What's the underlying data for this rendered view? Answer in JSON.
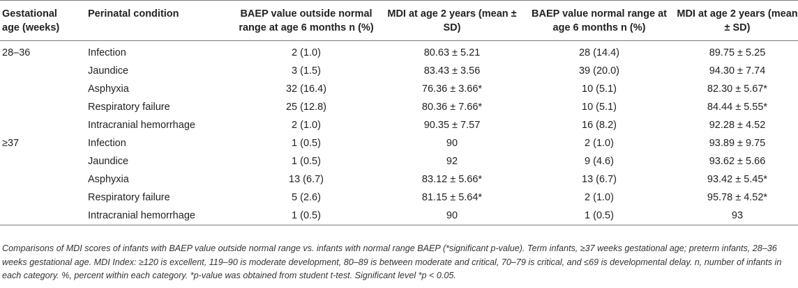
{
  "headers": {
    "gest_age": "Gestational age (weeks)",
    "condition": "Perinatal condition",
    "baep_out": "BAEP value outside normal range at age 6 months n (%)",
    "mdi_out": "MDI at age 2 years (mean ± SD)",
    "baep_norm": "BAEP value normal range at age 6 months n (%)",
    "mdi_norm": "MDI at age 2 years (mean ± SD)"
  },
  "rows": [
    {
      "ga": "28–36",
      "condition": "Infection",
      "baep_out": "2 (1.0)",
      "mdi_out": "80.63 ± 5.21",
      "baep_norm": "28 (14.4)",
      "mdi_norm": "89.75 ± 5.25"
    },
    {
      "ga": "",
      "condition": "Jaundice",
      "baep_out": "3 (1.5)",
      "mdi_out": "83.43 ± 3.56",
      "baep_norm": "39 (20.0)",
      "mdi_norm": "94.30 ± 7.74"
    },
    {
      "ga": "",
      "condition": "Asphyxia",
      "baep_out": "32 (16.4)",
      "mdi_out": "76.36 ± 3.66*",
      "baep_norm": "10 (5.1)",
      "mdi_norm": "82.30 ± 5.67*"
    },
    {
      "ga": "",
      "condition": "Respiratory failure",
      "baep_out": "25 (12.8)",
      "mdi_out": "80.36 ± 7.66*",
      "baep_norm": "10 (5.1)",
      "mdi_norm": "84.44 ± 5.55*"
    },
    {
      "ga": "",
      "condition": "Intracranial hemorrhage",
      "baep_out": "2 (1.0)",
      "mdi_out": "90.35 ± 7.57",
      "baep_norm": "16 (8.2)",
      "mdi_norm": "92.28 ± 4.52"
    },
    {
      "ga": "≥37",
      "condition": "Infection",
      "baep_out": "1 (0.5)",
      "mdi_out": "90",
      "baep_norm": "2 (1.0)",
      "mdi_norm": "93.89 ± 9.75"
    },
    {
      "ga": "",
      "condition": "Jaundice",
      "baep_out": "1 (0.5)",
      "mdi_out": "92",
      "baep_norm": "9 (4.6)",
      "mdi_norm": "93.62 ± 5.66"
    },
    {
      "ga": "",
      "condition": "Asphyxia",
      "baep_out": "13 (6.7)",
      "mdi_out": "83.12 ± 5.66*",
      "baep_norm": "13 (6.7)",
      "mdi_norm": "93.42 ± 5.45*"
    },
    {
      "ga": "",
      "condition": "Respiratory failure",
      "baep_out": "5 (2.6)",
      "mdi_out": "81.15 ± 5.64*",
      "baep_norm": "2 (1.0)",
      "mdi_norm": "95.78 ± 4.52*"
    },
    {
      "ga": "",
      "condition": "Intracranial hemorrhage",
      "baep_out": "1 (0.5)",
      "mdi_out": "90",
      "baep_norm": "1 (0.5)",
      "mdi_norm": "93"
    }
  ],
  "footnote": "Comparisons of MDI scores of infants with BAEP value outside normal range vs. infants with normal range BAEP (*significant p-value). Term infants, ≥37 weeks gestational age; preterm infants, 28–36 weeks gestational age. MDI Index: ≥120 is excellent, 119–90 is moderate development, 80–89 is between moderate and critical, 70–79 is critical, and ≤69 is developmental delay. n, number of infants in each category. %, percent within each category. *p-value was obtained from student t-test. Significant level *p < 0.05."
}
